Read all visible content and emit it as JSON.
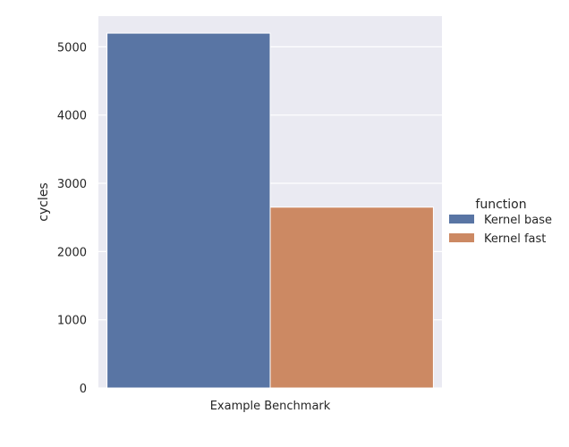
{
  "chart_data": {
    "type": "bar",
    "categories": [
      "Example Benchmark"
    ],
    "series": [
      {
        "name": "Kernel base",
        "values": [
          5200
        ],
        "color": "#5975a4"
      },
      {
        "name": "Kernel fast",
        "values": [
          2650
        ],
        "color": "#cc8963"
      }
    ],
    "ylabel": "cycles",
    "xlabel": "",
    "ylim": [
      0,
      5450
    ],
    "yticks": [
      0,
      1000,
      2000,
      3000,
      4000,
      5000
    ],
    "legend": {
      "title": "function",
      "placement": "right"
    },
    "grid": true,
    "background": "#eaeaf2",
    "grid_color": "#ffffff"
  }
}
